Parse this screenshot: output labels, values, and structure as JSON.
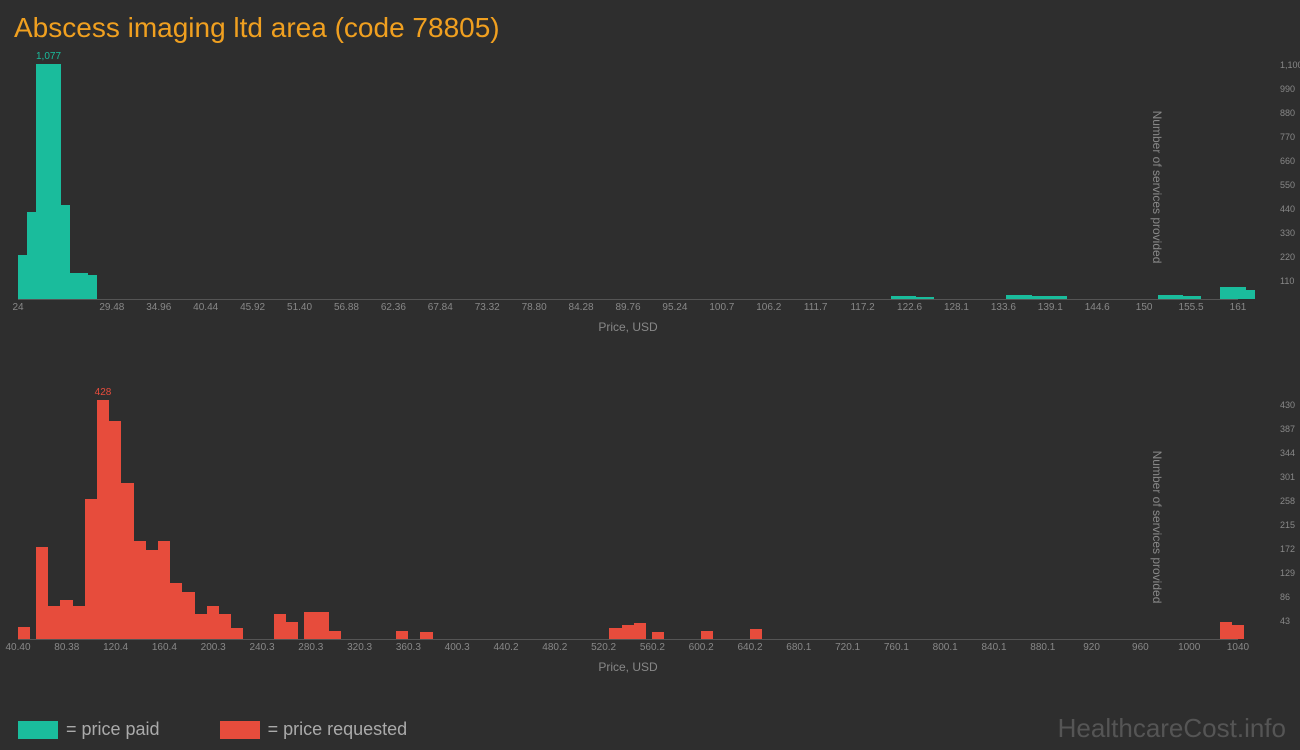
{
  "title": "Abscess imaging ltd area (code 78805)",
  "xlabel": "Price, USD",
  "ylabel": "Number of services provided",
  "colors": {
    "background": "#2e2e2e",
    "title": "#f0a020",
    "green": "#1abc9c",
    "red": "#e74c3c",
    "axis_text": "#888888",
    "watermark": "#555555"
  },
  "chart1": {
    "type": "histogram",
    "color": "#1abc9c",
    "xlim": [
      24,
      161
    ],
    "ylim": [
      0,
      1100
    ],
    "ytick_step": 110,
    "peak": {
      "x": 26,
      "value": 1077,
      "label": "1,077"
    },
    "x_ticks": [
      "24",
      "",
      "29.48",
      "34.96",
      "40.44",
      "45.92",
      "51.40",
      "56.88",
      "62.36",
      "67.84",
      "73.32",
      "78.80",
      "84.28",
      "89.76",
      "95.24",
      "100.7",
      "106.2",
      "111.7",
      "117.2",
      "122.6",
      "128.1",
      "133.6",
      "139.1",
      "144.6",
      "150",
      "155.5",
      "161"
    ],
    "bars": [
      {
        "x": 24.0,
        "value": 200
      },
      {
        "x": 25.0,
        "value": 400
      },
      {
        "x": 26.0,
        "value": 1077
      },
      {
        "x": 27.0,
        "value": 430
      },
      {
        "x": 28.0,
        "value": 110
      },
      {
        "x": 29.0,
        "value": 120
      },
      {
        "x": 30.0,
        "value": 110
      },
      {
        "x": 122.0,
        "value": 15
      },
      {
        "x": 124.0,
        "value": 10
      },
      {
        "x": 135.0,
        "value": 18
      },
      {
        "x": 137.0,
        "value": 15
      },
      {
        "x": 139.0,
        "value": 12
      },
      {
        "x": 152.0,
        "value": 20
      },
      {
        "x": 154.0,
        "value": 15
      },
      {
        "x": 159.0,
        "value": 55
      },
      {
        "x": 160.0,
        "value": 40
      }
    ]
  },
  "chart2": {
    "type": "histogram",
    "color": "#e74c3c",
    "xlim": [
      40.4,
      1040
    ],
    "ylim": [
      0,
      430
    ],
    "ytick_step": 43,
    "peak": {
      "x": 105,
      "value": 428,
      "label": "428"
    },
    "x_ticks": [
      "40.40",
      "",
      "80.38",
      "",
      "120.4",
      "",
      "160.4",
      "",
      "200.3",
      "",
      "240.3",
      "",
      "280.3",
      "",
      "320.3",
      "",
      "360.3",
      "",
      "400.3",
      "",
      "440.2",
      "",
      "480.2",
      "",
      "520.2",
      "",
      "560.2",
      "",
      "600.2",
      "",
      "640.2",
      "",
      "680.1",
      "",
      "720.1",
      "",
      "760.1",
      "",
      "800.1",
      "",
      "840.1",
      "",
      "880.1",
      "",
      "920",
      "",
      "960",
      "",
      "1000",
      "",
      "1040"
    ],
    "bars": [
      {
        "x": 40,
        "value": 22
      },
      {
        "x": 55,
        "value": 165
      },
      {
        "x": 65,
        "value": 60
      },
      {
        "x": 75,
        "value": 70
      },
      {
        "x": 85,
        "value": 60
      },
      {
        "x": 95,
        "value": 250
      },
      {
        "x": 105,
        "value": 428
      },
      {
        "x": 115,
        "value": 390
      },
      {
        "x": 125,
        "value": 280
      },
      {
        "x": 135,
        "value": 175
      },
      {
        "x": 145,
        "value": 160
      },
      {
        "x": 155,
        "value": 175
      },
      {
        "x": 165,
        "value": 100
      },
      {
        "x": 175,
        "value": 85
      },
      {
        "x": 185,
        "value": 45
      },
      {
        "x": 195,
        "value": 60
      },
      {
        "x": 205,
        "value": 45
      },
      {
        "x": 215,
        "value": 20
      },
      {
        "x": 250,
        "value": 45
      },
      {
        "x": 260,
        "value": 30
      },
      {
        "x": 275,
        "value": 48
      },
      {
        "x": 285,
        "value": 48
      },
      {
        "x": 295,
        "value": 15
      },
      {
        "x": 350,
        "value": 15
      },
      {
        "x": 370,
        "value": 12
      },
      {
        "x": 525,
        "value": 20
      },
      {
        "x": 535,
        "value": 25
      },
      {
        "x": 545,
        "value": 28
      },
      {
        "x": 560,
        "value": 12
      },
      {
        "x": 600,
        "value": 15
      },
      {
        "x": 640,
        "value": 18
      },
      {
        "x": 1025,
        "value": 30
      },
      {
        "x": 1035,
        "value": 25
      }
    ]
  },
  "legend": {
    "paid": "= price paid",
    "requested": "= price requested"
  },
  "watermark": "HealthcareCost.info"
}
